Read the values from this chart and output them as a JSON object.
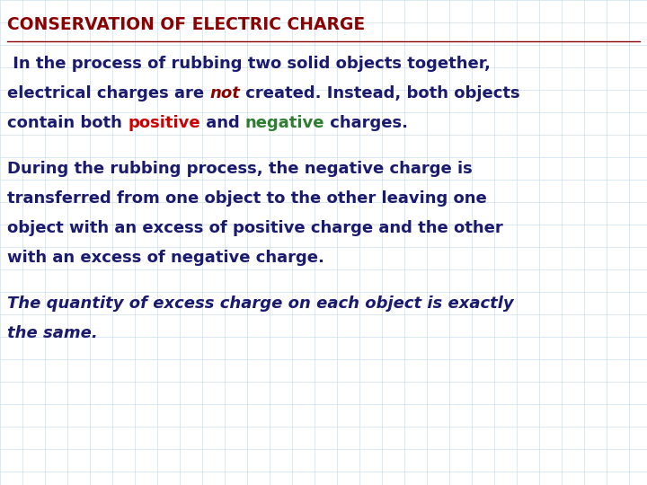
{
  "title": "CONSERVATION OF ELECTRIC CHARGE",
  "title_color": "#8B0000",
  "title_fontsize": 13.5,
  "background_color": "#FFFFFF",
  "grid_color": "#b8d4e8",
  "body_color": "#1a1a6e",
  "positive_color": "#cc0000",
  "negative_color": "#2e7d32",
  "para1_line1": " In the process of rubbing two solid objects together,",
  "para1_line2_pre": "electrical charges are ",
  "para1_line2_mid": "not",
  "para1_line2_post": " created. Instead, both objects",
  "para1_line3_pre": "contain both ",
  "para1_line3_pos": "positive",
  "para1_line3_mid": " and ",
  "para1_line3_neg": "negative",
  "para1_line3_post": " charges.",
  "para2_line1": "During the rubbing process, the negative charge is",
  "para2_line2": "transferred from one object to the other leaving one",
  "para2_line3": "object with an excess of positive charge and the other",
  "para2_line4": "with an excess of negative charge.",
  "para3_line1": "The quantity of excess charge on each object is exactly",
  "para3_line2": "the same.",
  "body_fontsize": 13.0
}
